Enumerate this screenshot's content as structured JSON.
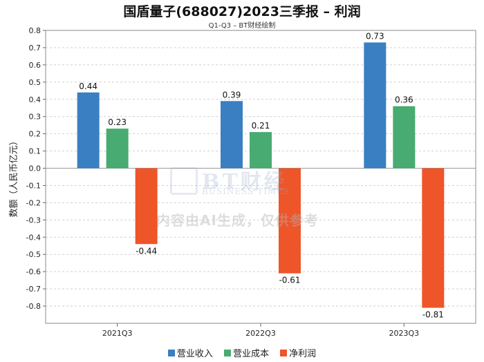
{
  "chart_data": {
    "type": "bar",
    "title": "国盾量子(688027)2023三季报 – 利润",
    "subtitle": "Q1-Q3 – BT财经绘制",
    "ylabel": "数额（人民币亿元）",
    "xlabel": "",
    "categories": [
      "2021Q3",
      "2022Q3",
      "2023Q3"
    ],
    "ylim": [
      -0.9,
      0.8
    ],
    "yticks": [
      0.8,
      0.7,
      0.6,
      0.5,
      0.4,
      0.3,
      0.2,
      0.1,
      0.0,
      -0.1,
      -0.2,
      -0.3,
      -0.4,
      -0.5,
      -0.6,
      -0.7,
      -0.8
    ],
    "ytick_labels": [
      "0.8",
      "0.7",
      "0.6",
      "0.5",
      "0.4",
      "0.3",
      "0.2",
      "0.1",
      "0.0",
      "-0.1",
      "-0.2",
      "-0.3",
      "-0.4",
      "-0.5",
      "-0.6",
      "-0.7",
      "-0.8"
    ],
    "grid": true,
    "legend_position": "bottom",
    "series": [
      {
        "name": "营业收入",
        "color": "#3a7fc1",
        "values": [
          0.44,
          0.39,
          0.73
        ],
        "labels": [
          "0.44",
          "0.39",
          "0.73"
        ]
      },
      {
        "name": "营业成本",
        "color": "#47ab72",
        "values": [
          0.23,
          0.21,
          0.36
        ],
        "labels": [
          "0.23",
          "0.21",
          "0.36"
        ]
      },
      {
        "name": "净利润",
        "color": "#ee5529",
        "values": [
          -0.44,
          -0.61,
          -0.81
        ],
        "labels": [
          "-0.44",
          "-0.61",
          "-0.81"
        ]
      }
    ]
  },
  "watermark": {
    "logo_text": "BT财经",
    "logo_sub": "BUSINESS TIMES",
    "notice": "内容由AI生成，仅供参考"
  }
}
